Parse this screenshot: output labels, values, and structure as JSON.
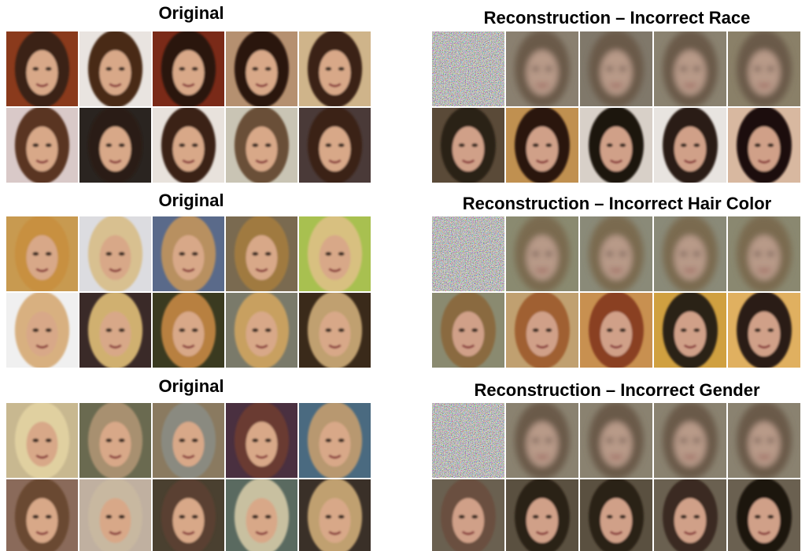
{
  "panels": [
    {
      "title": "Original"
    },
    {
      "title": "Reconstruction – Incorrect Race"
    },
    {
      "title": "Original"
    },
    {
      "title": "Reconstruction – Incorrect Hair Color"
    },
    {
      "title": "Original"
    },
    {
      "title": "Reconstruction – Incorrect Gender"
    }
  ]
}
